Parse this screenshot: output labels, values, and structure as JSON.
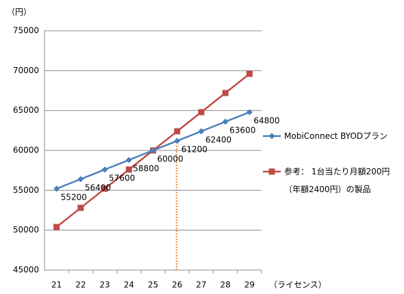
{
  "chart_data": {
    "type": "line",
    "y_unit_label": "（円）",
    "x_axis_label": "（ライセンス）",
    "categories": [
      "21",
      "22",
      "23",
      "24",
      "25",
      "26",
      "27",
      "28",
      "29"
    ],
    "series": [
      {
        "name": "MobiConnect BYODプラン",
        "color": "#4a7ebb",
        "marker": "diamond",
        "data_labels": true,
        "values": [
          55200,
          56400,
          57600,
          58800,
          60000,
          61200,
          62400,
          63600,
          64800
        ]
      },
      {
        "name": "参考： 1台当たり月額200円 （年額2400円）の製品",
        "color": "#be4b48",
        "marker": "square",
        "data_labels": false,
        "values": [
          50400,
          52800,
          55200,
          57600,
          60000,
          62400,
          64800,
          67200,
          69600
        ]
      }
    ],
    "ylim": [
      45000,
      75000
    ],
    "yticks": [
      45000,
      50000,
      55000,
      60000,
      65000,
      70000,
      75000
    ],
    "grid": true
  }
}
